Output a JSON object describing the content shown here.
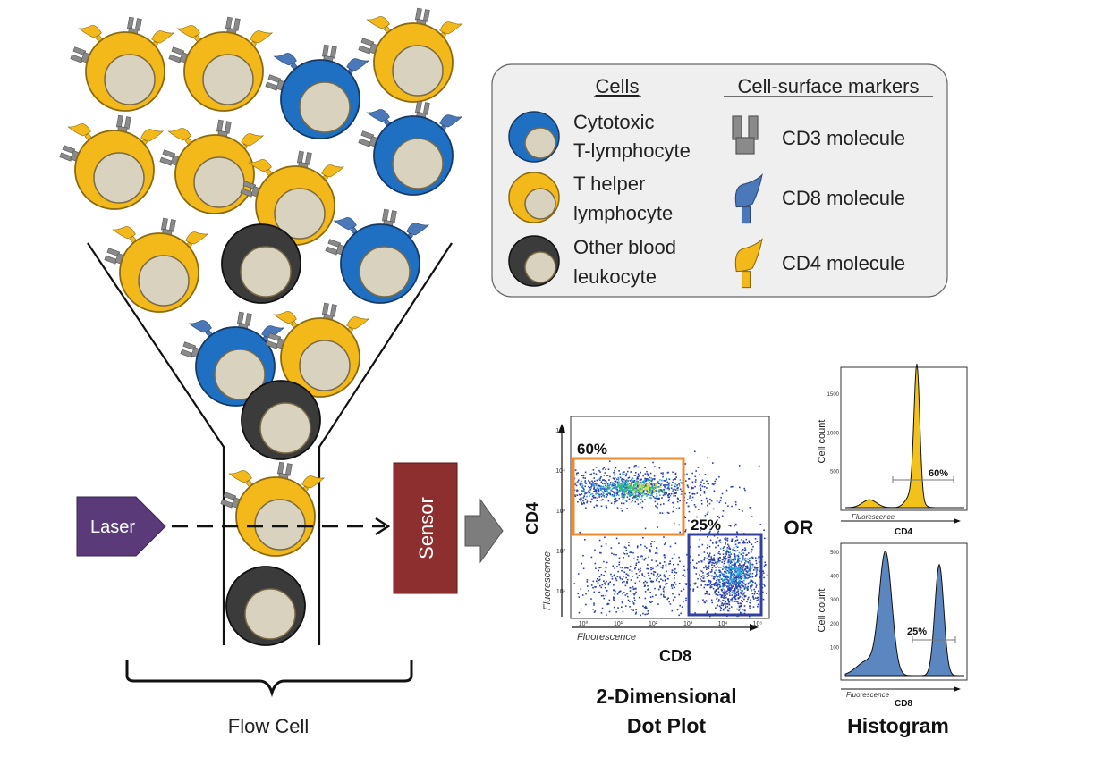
{
  "legend": {
    "cells_header": "Cells",
    "markers_header": "Cell-surface markers",
    "cells": [
      {
        "line1": "Cytotoxic",
        "line2": "T-lymphocyte",
        "color": "#1f6fc2"
      },
      {
        "line1": "T helper",
        "line2": "lymphocyte",
        "color": "#f3b81a"
      },
      {
        "line1": "Other blood",
        "line2": "leukocyte",
        "color": "#3b3b3b"
      }
    ],
    "markers": [
      {
        "label": "CD3 molecule",
        "icon": "cd3-marker-icon",
        "color": "#8a8a8a"
      },
      {
        "label": "CD8 molecule",
        "icon": "cd8-marker-icon",
        "color": "#4a78b8"
      },
      {
        "label": "CD4 molecule",
        "icon": "cd4-marker-icon",
        "color": "#f3b81a"
      }
    ]
  },
  "laser_label": "Laser",
  "sensor_label": "Sensor",
  "flow_cell_label": "Flow Cell",
  "or_label": "OR",
  "dotplot": {
    "caption_line1": "2-Dimensional",
    "caption_line2": "Dot Plot",
    "x_axis_label": "CD8",
    "y_axis_label": "CD4",
    "x_axis_sub": "Fluorescence",
    "y_axis_sub": "Fluorescence",
    "gate_cd4_pct": "60%",
    "gate_cd8_pct": "25%",
    "x_ticks": [
      "10⁰",
      "10¹",
      "10²",
      "10³",
      "10⁴",
      "10⁵"
    ],
    "y_ticks": [
      "10¹",
      "10²",
      "10³",
      "10⁴",
      "10⁵"
    ]
  },
  "histogram": {
    "caption": "Histogram",
    "top": {
      "x_label": "CD4",
      "x_sub": "Fluorescence",
      "y_label": "Cell count",
      "pct": "60%",
      "color": "#f3c21a",
      "y_ticks": [
        "1500",
        "1000",
        "500"
      ]
    },
    "bottom": {
      "x_label": "CD8",
      "x_sub": "Fluorescence",
      "y_label": "Cell count",
      "pct": "25%",
      "color": "#5b86c0",
      "y_ticks": [
        "500",
        "400",
        "300",
        "200",
        "100"
      ]
    }
  },
  "colors": {
    "helper": "#f3b81a",
    "cytotoxic": "#1f6fc2",
    "other": "#3b3b3b",
    "nucleus": "#d9d2bf",
    "cd3": "#8a8a8a",
    "cd8": "#4a78b8",
    "cd4": "#f3b81a",
    "laser": "#5b3a7a",
    "sensor": "#8e2f2f",
    "gate_cd4": "#f08a30",
    "gate_cd8": "#3340a0"
  }
}
